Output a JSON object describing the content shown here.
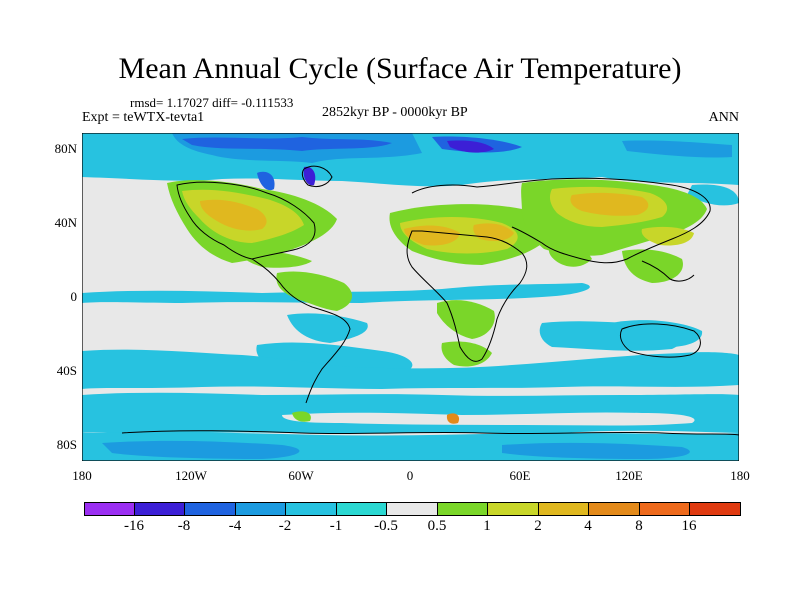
{
  "title": "Mean Annual Cycle (Surface Air Temperature)",
  "stats": "rmsd= 1.17027 diff= -0.111533",
  "experiment": "Expt = teWTX-tevta1",
  "period": "2852kyr BP - 0000kyr BP",
  "season": "ANN",
  "lat_labels": [
    "80N",
    "40N",
    "0",
    "40S",
    "80S"
  ],
  "lon_labels": [
    "180",
    "120W",
    "60W",
    "0",
    "60E",
    "120E",
    "180"
  ],
  "legend": {
    "colors": [
      "#9b2ff2",
      "#3c1fd6",
      "#1f63e0",
      "#1c9be0",
      "#27c2e0",
      "#2bd8d2",
      "#e8e8e8",
      "#7ad629",
      "#c8d629",
      "#e0b81f",
      "#e38a1a",
      "#ee6a1c",
      "#e03a10"
    ],
    "labels": [
      "-16",
      "-8",
      "-4",
      "-2",
      "-1",
      "-0.5",
      "0.5",
      "1",
      "2",
      "4",
      "8",
      "16"
    ]
  }
}
